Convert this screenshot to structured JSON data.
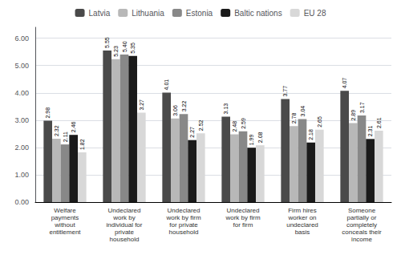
{
  "chart_data": {
    "type": "bar",
    "categories": [
      "Welfare\npayments\nwithout\nentitlement",
      "Undeclared\nwork by\nindividual for\nprivate\nhousehold",
      "Undeclared\nwork by firm\nfor private\nhousehold",
      "Undeclared\nwork by firm\nfor firm",
      "Firm hires\nworker on\nundeclared\nbasis",
      "Someone\npartially or\ncompletely\nconceals their\nincome"
    ],
    "series": [
      {
        "name": "Latvia",
        "color": "#4a4a4a",
        "values": [
          2.98,
          5.55,
          4.01,
          3.13,
          3.77,
          4.07
        ],
        "value_labels": [
          "2.98",
          "5.55",
          "4.01",
          "3.13",
          "3.77",
          "4.07"
        ]
      },
      {
        "name": "Lithuania",
        "color": "#b8b8b8",
        "values": [
          2.32,
          5.23,
          3.06,
          2.48,
          2.78,
          2.89
        ],
        "value_labels": [
          "2.32",
          "5.23",
          "3.06",
          "2.48",
          "2.78",
          "2.89"
        ]
      },
      {
        "name": "Estonia",
        "color": "#888888",
        "values": [
          2.11,
          5.4,
          3.22,
          2.59,
          3.04,
          3.17
        ],
        "value_labels": [
          "2.11",
          "5.40",
          "3.22",
          "2.59",
          "3.04",
          "3.17"
        ]
      },
      {
        "name": "Baltic nations",
        "color": "#1a1a1a",
        "values": [
          2.46,
          5.35,
          2.27,
          1.99,
          2.18,
          2.31
        ],
        "value_labels": [
          "2.46",
          "5.35",
          "2.27",
          "1.99",
          "2.18",
          "2.31"
        ]
      },
      {
        "name": "EU 28",
        "color": "#d8d8d8",
        "values": [
          1.82,
          3.27,
          2.52,
          2.08,
          2.65,
          2.61
        ],
        "value_labels": [
          "1.82",
          "3.27",
          "2.52",
          "2.08",
          "2.65",
          "2.61"
        ]
      }
    ],
    "ylim": [
      0.0,
      6.4
    ],
    "yticks": [
      {
        "value": 0,
        "label": "0.00"
      },
      {
        "value": 1,
        "label": "1.00"
      },
      {
        "value": 2,
        "label": "2.00"
      },
      {
        "value": 3,
        "label": "3.00"
      },
      {
        "value": 4,
        "label": "4.00"
      },
      {
        "value": 5,
        "label": "5.00"
      },
      {
        "value": 6,
        "label": "6.00"
      }
    ],
    "grid": true,
    "legend": "upper center",
    "data_labels": true
  }
}
